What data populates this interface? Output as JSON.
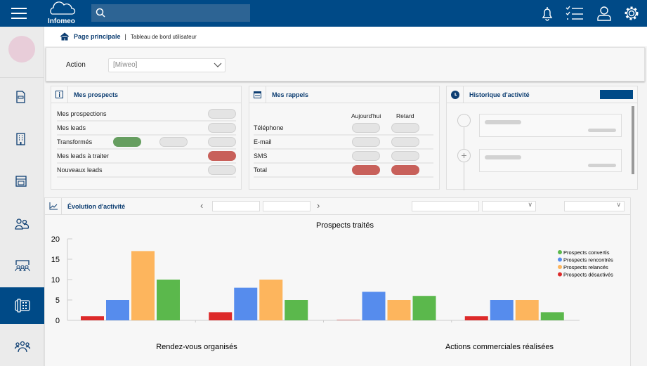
{
  "header": {
    "logo_text": "Infomeo",
    "search_placeholder": "",
    "icons": [
      "bell-icon",
      "checklist-icon",
      "user-icon",
      "gear-icon"
    ],
    "color": "#004a87"
  },
  "sidebar": {
    "items": [
      "document-icon",
      "building-icon",
      "calendar-icon",
      "contacts-icon",
      "meeting-icon",
      "phone-icon",
      "group-icon"
    ],
    "active": 5
  },
  "breadcrumb": {
    "home": "Page principale",
    "current": "Tableau de bord utilisateur"
  },
  "action": {
    "label": "Action",
    "value": "[Miweo]"
  },
  "prospects": {
    "title": "Mes prospects",
    "rows": [
      "Mes prospections",
      "Mes leads",
      "Transformés",
      "Mes leads à traiter",
      "Nouveaux leads"
    ]
  },
  "rappels": {
    "title": "Mes rappels",
    "col1": "Aujourd'hui",
    "col2": "Retard",
    "rows": [
      "Téléphone",
      "E-mail",
      "SMS",
      "Total"
    ]
  },
  "historique": {
    "title": "Historique d'activité"
  },
  "evolution": {
    "title": "Évolution d'activité"
  },
  "chart_data": {
    "type": "bar",
    "title": "Prospects traités",
    "categories": [
      "Rendez-vous organisés",
      "",
      "Actions commerciales réalisées",
      ""
    ],
    "category_labels": [
      "Rendez-vous organisés",
      "Actions commerciales réalisées"
    ],
    "ylim": [
      0,
      20
    ],
    "yticks": [
      "0",
      "5",
      "10",
      "15",
      "20"
    ],
    "legend_position": "right",
    "series": [
      {
        "name": "Prospects désactivés",
        "color": "#dd2a2a",
        "values": [
          1,
          2,
          0,
          1
        ]
      },
      {
        "name": "Prospects rencontrés",
        "color": "#568ced",
        "values": [
          5,
          8,
          7,
          5
        ]
      },
      {
        "name": "Prospects relancés",
        "color": "#fdb55d",
        "values": [
          17,
          10,
          5,
          5
        ]
      },
      {
        "name": "Prospects convertis",
        "color": "#5bb84c",
        "values": [
          10,
          5,
          6,
          2
        ]
      }
    ],
    "legend": [
      "Prospects convertis",
      "Prospects rencontrés",
      "Prospects relancés",
      "Prospects désactivés"
    ],
    "legend_colors": [
      "#5bb84c",
      "#568ced",
      "#fdb55d",
      "#dd2a2a"
    ]
  }
}
